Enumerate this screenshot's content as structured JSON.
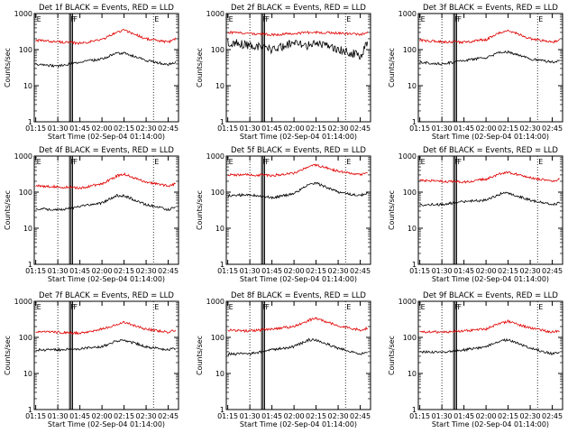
{
  "colors": {
    "events": "#000000",
    "lld": "#e00000",
    "background": "#ffffff",
    "axes": "#000000"
  },
  "chart_data": [
    {
      "type": "line",
      "title": "Det 1f BLACK = Events, RED = LLD",
      "xlabel": "Start Time (02-Sep-04 01:14:00)",
      "ylabel": "Counts/sec",
      "yscale": "log",
      "ylim": [
        1,
        1000
      ],
      "xlim": [
        "01:14",
        "02:52"
      ],
      "xticks": [
        "01:15",
        "01:30",
        "01:45",
        "02:00",
        "02:15",
        "02:30",
        "02:45"
      ],
      "yticks": [
        "1",
        "10",
        "100",
        "1000"
      ],
      "vlines_dotted": [
        "01:30",
        "02:35"
      ],
      "vlines_solid": [
        "01:38",
        "01:39",
        "01:40"
      ],
      "markers": [
        {
          "text": "E",
          "at": "01:15"
        },
        {
          "text": "F",
          "at": "01:38"
        },
        {
          "text": "F",
          "at": "01:40"
        },
        {
          "text": "E",
          "at": "02:35"
        }
      ],
      "series": [
        {
          "name": "LLD",
          "color": "#e00000",
          "x": [
            "01:15",
            "01:30",
            "01:45",
            "02:00",
            "02:10",
            "02:15",
            "02:30",
            "02:45",
            "02:50"
          ],
          "values": [
            180,
            165,
            150,
            190,
            300,
            350,
            200,
            160,
            200
          ]
        },
        {
          "name": "Events",
          "color": "#000000",
          "x": [
            "01:15",
            "01:30",
            "01:45",
            "02:00",
            "02:10",
            "02:15",
            "02:30",
            "02:45",
            "02:50"
          ],
          "values": [
            40,
            35,
            45,
            55,
            80,
            80,
            50,
            38,
            45
          ]
        }
      ]
    },
    {
      "type": "line",
      "title": "Det 2f BLACK = Events, RED = LLD",
      "xlabel": "Start Time (02-Sep-04 01:14:00)",
      "ylabel": "Counts/sec",
      "yscale": "log",
      "ylim": [
        1,
        1000
      ],
      "xlim": [
        "01:14",
        "02:52"
      ],
      "xticks": [
        "01:15",
        "01:30",
        "01:45",
        "02:00",
        "02:15",
        "02:30",
        "02:45"
      ],
      "yticks": [
        "1",
        "10",
        "100",
        "1000"
      ],
      "vlines_dotted": [
        "01:30",
        "02:35"
      ],
      "vlines_solid": [
        "01:38",
        "01:39",
        "01:40"
      ],
      "markers": [
        {
          "text": "E",
          "at": "01:15"
        },
        {
          "text": "F",
          "at": "01:38"
        },
        {
          "text": "F",
          "at": "01:40"
        },
        {
          "text": "E",
          "at": "02:35"
        }
      ],
      "series": [
        {
          "name": "LLD",
          "color": "#e00000",
          "x": [
            "01:15",
            "01:30",
            "01:45",
            "02:00",
            "02:10",
            "02:15",
            "02:30",
            "02:45",
            "02:50"
          ],
          "values": [
            300,
            280,
            260,
            280,
            300,
            300,
            290,
            260,
            300
          ]
        },
        {
          "name": "Events",
          "color": "#000000",
          "x": [
            "01:15",
            "01:30",
            "01:45",
            "02:00",
            "02:10",
            "02:15",
            "02:30",
            "02:45",
            "02:50"
          ],
          "values": [
            160,
            130,
            100,
            150,
            130,
            160,
            100,
            70,
            150
          ]
        }
      ]
    },
    {
      "type": "line",
      "title": "Det 3f BLACK = Events, RED = LLD",
      "xlabel": "Start Time (02-Sep-04 01:14:00)",
      "ylabel": "Counts/sec",
      "yscale": "log",
      "ylim": [
        1,
        1000
      ],
      "xlim": [
        "01:14",
        "02:52"
      ],
      "xticks": [
        "01:15",
        "01:30",
        "01:45",
        "02:00",
        "02:15",
        "02:30",
        "02:45"
      ],
      "yticks": [
        "1",
        "10",
        "100",
        "1000"
      ],
      "vlines_dotted": [
        "01:30",
        "02:35"
      ],
      "vlines_solid": [
        "01:38",
        "01:39",
        "01:40"
      ],
      "markers": [
        {
          "text": "E",
          "at": "01:15"
        },
        {
          "text": "F",
          "at": "01:38"
        },
        {
          "text": "F",
          "at": "01:40"
        },
        {
          "text": "E",
          "at": "02:35"
        }
      ],
      "series": [
        {
          "name": "LLD",
          "color": "#e00000",
          "x": [
            "01:15",
            "01:30",
            "01:45",
            "02:00",
            "02:10",
            "02:15",
            "02:30",
            "02:45",
            "02:50"
          ],
          "values": [
            180,
            165,
            160,
            190,
            300,
            340,
            200,
            160,
            190
          ]
        },
        {
          "name": "Events",
          "color": "#000000",
          "x": [
            "01:15",
            "01:30",
            "01:45",
            "02:00",
            "02:10",
            "02:15",
            "02:30",
            "02:45",
            "02:50"
          ],
          "values": [
            45,
            40,
            50,
            60,
            85,
            85,
            55,
            45,
            50
          ]
        }
      ]
    },
    {
      "type": "line",
      "title": "Det 4f BLACK = Events, RED = LLD",
      "xlabel": "Start Time (02-Sep-04 01:14:00)",
      "ylabel": "Counts/sec",
      "yscale": "log",
      "ylim": [
        1,
        1000
      ],
      "xlim": [
        "01:14",
        "02:52"
      ],
      "xticks": [
        "01:15",
        "01:30",
        "01:45",
        "02:00",
        "02:15",
        "02:30",
        "02:45"
      ],
      "yticks": [
        "1",
        "10",
        "100",
        "1000"
      ],
      "vlines_dotted": [
        "01:30",
        "02:35"
      ],
      "vlines_solid": [
        "01:38",
        "01:39",
        "01:40"
      ],
      "markers": [
        {
          "text": "E",
          "at": "01:15"
        },
        {
          "text": "F",
          "at": "01:38"
        },
        {
          "text": "F",
          "at": "01:40"
        },
        {
          "text": "E",
          "at": "02:35"
        }
      ],
      "series": [
        {
          "name": "LLD",
          "color": "#e00000",
          "x": [
            "01:15",
            "01:30",
            "01:45",
            "02:00",
            "02:10",
            "02:15",
            "02:30",
            "02:45",
            "02:50"
          ],
          "values": [
            150,
            140,
            130,
            170,
            280,
            320,
            190,
            150,
            170
          ]
        },
        {
          "name": "Events",
          "color": "#000000",
          "x": [
            "01:15",
            "01:30",
            "01:45",
            "02:00",
            "02:10",
            "02:15",
            "02:30",
            "02:45",
            "02:50"
          ],
          "values": [
            35,
            32,
            40,
            50,
            80,
            80,
            45,
            33,
            38
          ]
        }
      ]
    },
    {
      "type": "line",
      "title": "Det 5f BLACK = Events, RED = LLD",
      "xlabel": "Start Time (02-Sep-04 01:14:00)",
      "ylabel": "Counts/sec",
      "yscale": "log",
      "ylim": [
        1,
        1000
      ],
      "xlim": [
        "01:14",
        "02:52"
      ],
      "xticks": [
        "01:15",
        "01:30",
        "01:45",
        "02:00",
        "02:15",
        "02:30",
        "02:45"
      ],
      "yticks": [
        "1",
        "10",
        "100",
        "1000"
      ],
      "vlines_dotted": [
        "01:30",
        "02:35"
      ],
      "vlines_solid": [
        "01:38",
        "01:39",
        "01:40"
      ],
      "markers": [
        {
          "text": "E",
          "at": "01:15"
        },
        {
          "text": "F",
          "at": "01:38"
        },
        {
          "text": "F",
          "at": "01:40"
        },
        {
          "text": "E",
          "at": "02:35"
        }
      ],
      "series": [
        {
          "name": "LLD",
          "color": "#e00000",
          "x": [
            "01:15",
            "01:30",
            "01:45",
            "02:00",
            "02:10",
            "02:15",
            "02:30",
            "02:45",
            "02:50"
          ],
          "values": [
            300,
            300,
            290,
            340,
            500,
            560,
            380,
            300,
            340
          ]
        },
        {
          "name": "Events",
          "color": "#000000",
          "x": [
            "01:15",
            "01:30",
            "01:45",
            "02:00",
            "02:10",
            "02:15",
            "02:30",
            "02:45",
            "02:50"
          ],
          "values": [
            80,
            85,
            70,
            90,
            160,
            180,
            100,
            80,
            95
          ]
        }
      ]
    },
    {
      "type": "line",
      "title": "Det 6f BLACK = Events, RED = LLD",
      "xlabel": "Start Time (02-Sep-04 01:14:00)",
      "ylabel": "Counts/sec",
      "yscale": "log",
      "ylim": [
        1,
        1000
      ],
      "xlim": [
        "01:14",
        "02:52"
      ],
      "xticks": [
        "01:15",
        "01:30",
        "01:45",
        "02:00",
        "02:15",
        "02:30",
        "02:45"
      ],
      "yticks": [
        "1",
        "10",
        "100",
        "1000"
      ],
      "vlines_dotted": [
        "01:30",
        "02:35"
      ],
      "vlines_solid": [
        "01:38",
        "01:39",
        "01:40"
      ],
      "markers": [
        {
          "text": "E",
          "at": "01:15"
        },
        {
          "text": "F",
          "at": "01:38"
        },
        {
          "text": "F",
          "at": "01:40"
        },
        {
          "text": "E",
          "at": "02:35"
        }
      ],
      "series": [
        {
          "name": "LLD",
          "color": "#e00000",
          "x": [
            "01:15",
            "01:30",
            "01:45",
            "02:00",
            "02:10",
            "02:15",
            "02:30",
            "02:45",
            "02:50"
          ],
          "values": [
            210,
            200,
            190,
            230,
            330,
            360,
            250,
            200,
            230
          ]
        },
        {
          "name": "Events",
          "color": "#000000",
          "x": [
            "01:15",
            "01:30",
            "01:45",
            "02:00",
            "02:10",
            "02:15",
            "02:30",
            "02:45",
            "02:50"
          ],
          "values": [
            45,
            45,
            55,
            60,
            90,
            95,
            60,
            45,
            50
          ]
        }
      ]
    },
    {
      "type": "line",
      "title": "Det 7f BLACK = Events, RED = LLD",
      "xlabel": "Start Time (02-Sep-04 01:14:00)",
      "ylabel": "Counts/sec",
      "yscale": "log",
      "ylim": [
        1,
        1000
      ],
      "xlim": [
        "01:14",
        "02:52"
      ],
      "xticks": [
        "01:15",
        "01:30",
        "01:45",
        "02:00",
        "02:15",
        "02:30",
        "02:45"
      ],
      "yticks": [
        "1",
        "10",
        "100",
        "1000"
      ],
      "vlines_dotted": [
        "01:30",
        "02:35"
      ],
      "vlines_solid": [
        "01:38",
        "01:39",
        "01:40"
      ],
      "markers": [
        {
          "text": "E",
          "at": "01:15"
        },
        {
          "text": "F",
          "at": "01:38"
        },
        {
          "text": "F",
          "at": "01:40"
        },
        {
          "text": "E",
          "at": "02:35"
        }
      ],
      "series": [
        {
          "name": "LLD",
          "color": "#e00000",
          "x": [
            "01:15",
            "01:30",
            "01:45",
            "02:00",
            "02:10",
            "02:15",
            "02:30",
            "02:45",
            "02:50"
          ],
          "values": [
            140,
            140,
            130,
            170,
            230,
            260,
            170,
            140,
            160
          ]
        },
        {
          "name": "Events",
          "color": "#000000",
          "x": [
            "01:15",
            "01:30",
            "01:45",
            "02:00",
            "02:10",
            "02:15",
            "02:30",
            "02:45",
            "02:50"
          ],
          "values": [
            45,
            45,
            48,
            55,
            80,
            85,
            55,
            45,
            50
          ]
        }
      ]
    },
    {
      "type": "line",
      "title": "Det 8f BLACK = Events, RED = LLD",
      "xlabel": "Start Time (02-Sep-04 01:14:00)",
      "ylabel": "Counts/sec",
      "yscale": "log",
      "ylim": [
        1,
        1000
      ],
      "xlim": [
        "01:14",
        "02:52"
      ],
      "xticks": [
        "01:15",
        "01:30",
        "01:45",
        "02:00",
        "02:15",
        "02:30",
        "02:45"
      ],
      "yticks": [
        "1",
        "10",
        "100",
        "1000"
      ],
      "vlines_dotted": [
        "01:30",
        "02:35"
      ],
      "vlines_solid": [
        "01:38",
        "01:39",
        "01:40"
      ],
      "markers": [
        {
          "text": "E",
          "at": "01:15"
        },
        {
          "text": "F",
          "at": "01:38"
        },
        {
          "text": "F",
          "at": "01:40"
        },
        {
          "text": "E",
          "at": "02:35"
        }
      ],
      "series": [
        {
          "name": "LLD",
          "color": "#e00000",
          "x": [
            "01:15",
            "01:30",
            "01:45",
            "02:00",
            "02:10",
            "02:15",
            "02:30",
            "02:45",
            "02:50"
          ],
          "values": [
            160,
            150,
            170,
            200,
            300,
            340,
            210,
            160,
            180
          ]
        },
        {
          "name": "Events",
          "color": "#000000",
          "x": [
            "01:15",
            "01:30",
            "01:45",
            "02:00",
            "02:10",
            "02:15",
            "02:30",
            "02:45",
            "02:50"
          ],
          "values": [
            35,
            35,
            45,
            55,
            85,
            85,
            50,
            35,
            40
          ]
        }
      ]
    },
    {
      "type": "line",
      "title": "Det 9f BLACK = Events, RED = LLD",
      "xlabel": "Start Time (02-Sep-04 01:14:00)",
      "ylabel": "Counts/sec",
      "yscale": "log",
      "ylim": [
        1,
        1000
      ],
      "xlim": [
        "01:14",
        "02:52"
      ],
      "xticks": [
        "01:15",
        "01:30",
        "01:45",
        "02:00",
        "02:15",
        "02:30",
        "02:45"
      ],
      "yticks": [
        "1",
        "10",
        "100",
        "1000"
      ],
      "vlines_dotted": [
        "01:30",
        "02:35"
      ],
      "vlines_solid": [
        "01:38",
        "01:39",
        "01:40"
      ],
      "markers": [
        {
          "text": "E",
          "at": "01:15"
        },
        {
          "text": "F",
          "at": "01:38"
        },
        {
          "text": "F",
          "at": "01:40"
        },
        {
          "text": "E",
          "at": "02:35"
        }
      ],
      "series": [
        {
          "name": "LLD",
          "color": "#e00000",
          "x": [
            "01:15",
            "01:30",
            "01:45",
            "02:00",
            "02:10",
            "02:15",
            "02:30",
            "02:45",
            "02:50"
          ],
          "values": [
            140,
            140,
            150,
            170,
            250,
            280,
            180,
            140,
            150
          ]
        },
        {
          "name": "Events",
          "color": "#000000",
          "x": [
            "01:15",
            "01:30",
            "01:45",
            "02:00",
            "02:10",
            "02:15",
            "02:30",
            "02:45",
            "02:50"
          ],
          "values": [
            40,
            38,
            45,
            55,
            80,
            85,
            50,
            35,
            40
          ]
        }
      ]
    }
  ]
}
